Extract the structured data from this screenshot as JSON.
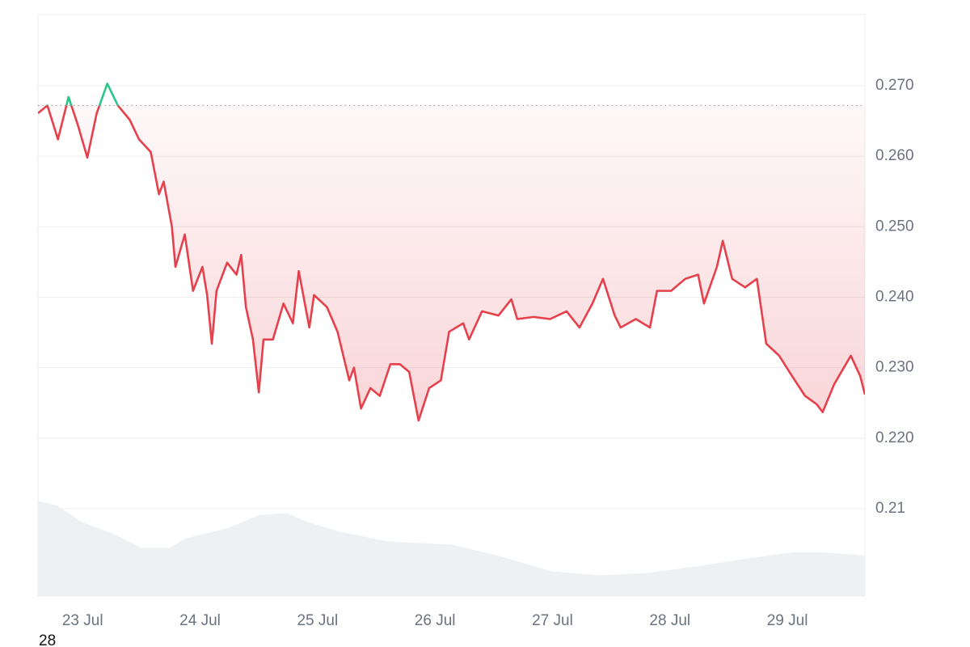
{
  "chart_data": {
    "type": "line",
    "x": [
      22.62,
      22.7,
      22.79,
      22.88,
      22.96,
      23.04,
      23.12,
      23.21,
      23.3,
      23.4,
      23.48,
      23.58,
      23.65,
      23.69,
      23.76,
      23.79,
      23.87,
      23.94,
      24.02,
      24.06,
      24.1,
      24.14,
      24.23,
      24.31,
      24.35,
      24.39,
      24.45,
      24.5,
      24.54,
      24.62,
      24.71,
      24.79,
      24.84,
      24.93,
      24.97,
      25.08,
      25.17,
      25.27,
      25.31,
      25.37,
      25.45,
      25.53,
      25.62,
      25.7,
      25.78,
      25.86,
      25.95,
      26.05,
      26.12,
      26.24,
      26.29,
      26.4,
      26.54,
      26.65,
      26.7,
      26.84,
      26.98,
      27.12,
      27.23,
      27.34,
      27.43,
      27.53,
      27.58,
      27.71,
      27.83,
      27.89,
      28.01,
      28.13,
      28.24,
      28.29,
      28.4,
      28.45,
      28.53,
      28.64,
      28.74,
      28.82,
      28.93,
      29.04,
      29.15,
      29.25,
      29.3,
      29.4,
      29.54,
      29.62,
      29.66
    ],
    "series": [
      {
        "values": [
          0.2661,
          0.2672,
          0.2624,
          0.2684,
          0.2644,
          0.2598,
          0.2661,
          0.2703,
          0.2672,
          0.2652,
          0.2624,
          0.2606,
          0.2546,
          0.2564,
          0.25,
          0.2443,
          0.2489,
          0.2409,
          0.2443,
          0.2403,
          0.2334,
          0.2409,
          0.2449,
          0.2432,
          0.246,
          0.2386,
          0.234,
          0.2265,
          0.234,
          0.234,
          0.2391,
          0.2363,
          0.2437,
          0.2357,
          0.2403,
          0.2386,
          0.2351,
          0.2282,
          0.23,
          0.2242,
          0.2271,
          0.226,
          0.2305,
          0.2305,
          0.2294,
          0.2225,
          0.2271,
          0.2282,
          0.2351,
          0.2363,
          0.234,
          0.238,
          0.2374,
          0.2397,
          0.2369,
          0.2372,
          0.2369,
          0.238,
          0.2357,
          0.2391,
          0.2426,
          0.2374,
          0.2357,
          0.2369,
          0.2357,
          0.2409,
          0.2409,
          0.2426,
          0.2432,
          0.2391,
          0.2443,
          0.248,
          0.2426,
          0.2414,
          0.2426,
          0.2334,
          0.2317,
          0.2288,
          0.226,
          0.2248,
          0.2237,
          0.2277,
          0.2317,
          0.2288,
          0.2262
        ],
        "color": "#e5404b",
        "color_above": "#2bc48a"
      }
    ],
    "baseline": 0.2672,
    "volume": {
      "x": [
        22.62,
        22.78,
        22.99,
        23.26,
        23.5,
        23.74,
        23.88,
        24.23,
        24.5,
        24.74,
        24.91,
        25.19,
        25.6,
        26.15,
        26.57,
        26.98,
        27.39,
        27.8,
        28.22,
        28.63,
        29.04,
        29.32,
        29.66
      ],
      "values": [
        87,
        83,
        68,
        57,
        44,
        44,
        53,
        62,
        74,
        76,
        68,
        59,
        50,
        47,
        36,
        23,
        19,
        21,
        27,
        34,
        40,
        40,
        37
      ],
      "color": "#eef1f4",
      "axis": "y2"
    },
    "y2lim": [
      0,
      100
    ],
    "xlim": [
      22.62,
      29.66
    ],
    "xticks": [
      {
        "value": 23,
        "label": "23 Jul"
      },
      {
        "value": 24,
        "label": "24 Jul"
      },
      {
        "value": 25,
        "label": "25 Jul"
      },
      {
        "value": 26,
        "label": "26 Jul"
      },
      {
        "value": 27,
        "label": "27 Jul"
      },
      {
        "value": 28,
        "label": "28 Jul"
      },
      {
        "value": 29,
        "label": "29 Jul"
      }
    ],
    "ylim": [
      0.1976,
      0.2801
    ],
    "yticks": [
      {
        "value": 0.27,
        "label": "0.270"
      },
      {
        "value": 0.26,
        "label": "0.260"
      },
      {
        "value": 0.25,
        "label": "0.250"
      },
      {
        "value": 0.24,
        "label": "0.240"
      },
      {
        "value": 0.23,
        "label": "0.230"
      },
      {
        "value": 0.22,
        "label": "0.220"
      },
      0.21
    ],
    "grid": true,
    "footnote": "28"
  }
}
